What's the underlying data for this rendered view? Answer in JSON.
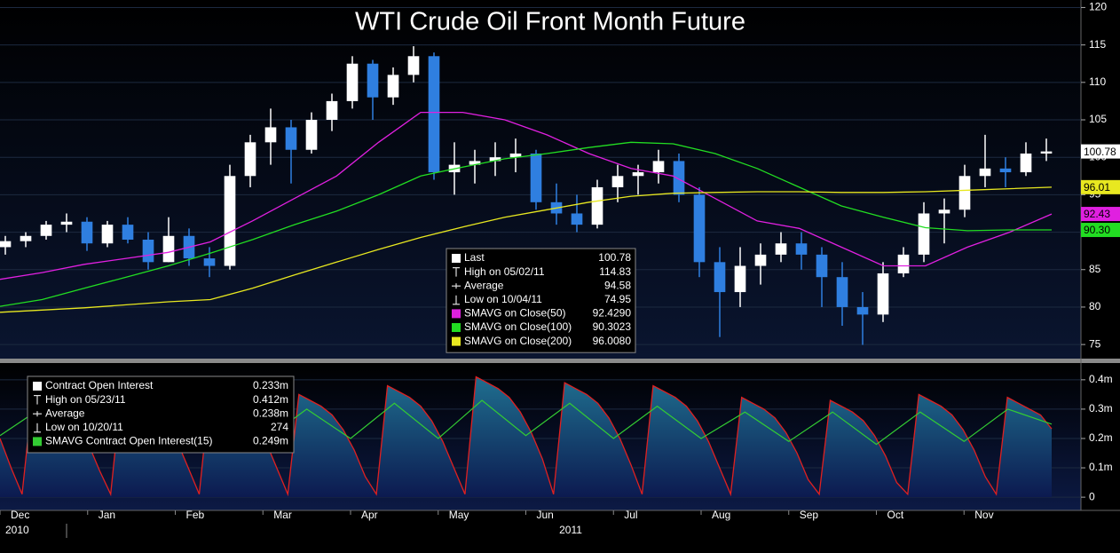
{
  "chart_data": [
    {
      "type": "candlestick",
      "title": "WTI Crude Oil Front Month Future",
      "ylim": [
        73,
        121
      ],
      "yticks": [
        75,
        80,
        85,
        90,
        95,
        100,
        105,
        110,
        115,
        120
      ],
      "grid": true,
      "up_color": "#ffffff",
      "down_color": "#2f7fe0",
      "ohlc": [
        [
          88,
          89.5,
          87,
          88.8
        ],
        [
          88.8,
          90,
          88,
          89.5
        ],
        [
          89.5,
          91.5,
          89,
          91
        ],
        [
          91,
          92.5,
          90,
          91.4
        ],
        [
          91.4,
          92,
          87.5,
          88.5
        ],
        [
          88.5,
          91.5,
          88,
          91
        ],
        [
          91,
          92,
          88.5,
          89
        ],
        [
          89,
          90,
          85,
          86
        ],
        [
          86,
          92,
          86,
          89.5
        ],
        [
          89.5,
          90.5,
          85.5,
          86.5
        ],
        [
          86.5,
          88,
          84,
          85.5
        ],
        [
          85.5,
          99,
          85,
          97.5
        ],
        [
          97.5,
          103,
          96,
          102
        ],
        [
          102,
          106.5,
          99,
          104
        ],
        [
          104,
          105,
          96.5,
          101
        ],
        [
          101,
          106,
          100.5,
          105
        ],
        [
          105,
          108.5,
          103.5,
          107.5
        ],
        [
          107.5,
          113.5,
          106.5,
          112.5
        ],
        [
          112.5,
          113,
          105,
          108
        ],
        [
          108,
          112,
          107,
          111
        ],
        [
          111,
          114.83,
          110,
          113.5
        ],
        [
          113.5,
          114,
          97,
          98
        ],
        [
          98,
          102,
          95,
          99
        ],
        [
          99,
          101,
          96.5,
          99.5
        ],
        [
          99.5,
          102,
          97.5,
          100
        ],
        [
          100,
          102.5,
          98,
          100.5
        ],
        [
          100.5,
          101,
          93,
          94
        ],
        [
          94,
          96.5,
          91,
          92.5
        ],
        [
          92.5,
          95,
          90,
          91
        ],
        [
          91,
          97,
          90.5,
          96
        ],
        [
          96,
          99,
          94,
          97.5
        ],
        [
          97.5,
          99,
          95,
          98
        ],
        [
          98,
          101,
          96.5,
          99.5
        ],
        [
          99.5,
          100.5,
          94,
          95
        ],
        [
          95,
          96,
          84,
          86
        ],
        [
          86,
          88,
          76,
          82
        ],
        [
          82,
          88,
          80,
          85.5
        ],
        [
          85.5,
          88.5,
          83,
          87
        ],
        [
          87,
          90,
          86,
          88.5
        ],
        [
          88.5,
          90,
          85,
          87
        ],
        [
          87,
          88,
          80,
          84
        ],
        [
          84,
          86,
          77.5,
          80
        ],
        [
          80,
          82,
          74.95,
          79
        ],
        [
          79,
          86,
          78,
          84.5
        ],
        [
          84.5,
          88,
          84,
          87
        ],
        [
          87,
          94,
          86,
          92.5
        ],
        [
          92.5,
          94.5,
          88.5,
          93
        ],
        [
          93,
          99,
          92,
          97.5
        ],
        [
          97.5,
          103,
          96,
          98.5
        ],
        [
          98.5,
          100,
          96,
          98
        ],
        [
          98,
          102,
          97.5,
          100.5
        ],
        [
          100.5,
          102.5,
          99.5,
          100.78
        ]
      ],
      "stats": [
        {
          "label": "Last",
          "value": 100.78
        },
        {
          "label": "High on 05/02/11",
          "value": 114.83
        },
        {
          "label": "Average",
          "value": 94.58
        },
        {
          "label": "Low on 10/04/11",
          "value": 74.95
        }
      ],
      "series": [
        {
          "name": "SMAVG on Close(50)",
          "color": "#e020e0",
          "last": 92.429,
          "last_label": "92.4290",
          "tag": 92.43,
          "values": [
            83.7,
            84.6,
            85.7,
            86.5,
            87.3,
            88.7,
            91.5,
            94.5,
            97.5,
            102,
            106,
            106,
            105,
            103,
            100.5,
            98.5,
            97.5,
            94.5,
            91.5,
            90.5,
            88,
            85.5,
            85.5,
            88,
            90,
            92.43
          ]
        },
        {
          "name": "SMAVG on Close(100)",
          "color": "#22dd22",
          "last": 90.3023,
          "tag": 90.3,
          "tag_label": "90.30",
          "values": [
            80.1,
            81,
            82.5,
            84,
            85.5,
            87.2,
            89,
            91,
            92.8,
            95,
            97.5,
            98.7,
            99.8,
            100.5,
            101.3,
            102,
            101.8,
            100.5,
            98.5,
            96,
            93.5,
            92,
            90.6,
            90.2,
            90.3,
            90.3
          ]
        },
        {
          "name": "SMAVG on Close(200)",
          "color": "#e8e820",
          "last": 96.008,
          "last_label": "96.0080",
          "tag": 96.01,
          "values": [
            79.3,
            79.6,
            79.9,
            80.3,
            80.7,
            81,
            82.5,
            84.3,
            86,
            87.7,
            89.3,
            90.7,
            92,
            93,
            94,
            94.8,
            95.2,
            95.3,
            95.4,
            95.4,
            95.3,
            95.3,
            95.4,
            95.6,
            95.8,
            96.01
          ]
        }
      ]
    },
    {
      "type": "area",
      "ylim": [
        -0.045,
        0.46
      ],
      "yticks": [
        0,
        {
          "value": 0.1,
          "label": "0.1m"
        },
        {
          "value": 0.2,
          "label": "0.2m"
        },
        {
          "value": 0.3,
          "label": "0.3m"
        },
        {
          "value": 0.4,
          "label": "0.4m"
        }
      ],
      "stats": [
        {
          "label": "Contract Open Interest",
          "value": 0.233,
          "value_label": "0.233m"
        },
        {
          "label": "High on 05/23/11",
          "value": 0.412,
          "value_label": "0.412m"
        },
        {
          "label": "Average",
          "value": 0.238,
          "value_label": "0.238m"
        },
        {
          "label": "Low on 10/20/11",
          "value": 274
        }
      ],
      "series": [
        {
          "color": "#e02020",
          "values": [
            0.2,
            0.1,
            0.01,
            0.37,
            0.35,
            0.33,
            0.3,
            0.25,
            0.18,
            0.09,
            0.01,
            0.38,
            0.36,
            0.34,
            0.31,
            0.26,
            0.19,
            0.1,
            0.01,
            0.38,
            0.36,
            0.34,
            0.31,
            0.26,
            0.19,
            0.1,
            0.01,
            0.35,
            0.33,
            0.31,
            0.28,
            0.23,
            0.16,
            0.07,
            0.01,
            0.38,
            0.36,
            0.34,
            0.31,
            0.26,
            0.19,
            0.1,
            0.01,
            0.41,
            0.39,
            0.37,
            0.34,
            0.29,
            0.22,
            0.13,
            0.01,
            0.39,
            0.37,
            0.35,
            0.32,
            0.27,
            0.2,
            0.11,
            0.01,
            0.38,
            0.36,
            0.34,
            0.31,
            0.26,
            0.19,
            0.1,
            0.01,
            0.34,
            0.32,
            0.3,
            0.27,
            0.22,
            0.15,
            0.06,
            0.01,
            0.33,
            0.31,
            0.29,
            0.26,
            0.21,
            0.14,
            0.05,
            0.01,
            0.35,
            0.33,
            0.31,
            0.28,
            0.23,
            0.16,
            0.07,
            0.01,
            0.34,
            0.32,
            0.3,
            0.28,
            0.233
          ]
        },
        {
          "name": "SMAVG Contract Open Interest(15)",
          "color": "#33cc33",
          "last": 0.249,
          "last_label": "0.249m",
          "values": [
            0.21,
            0.31,
            0.19,
            0.32,
            0.2,
            0.31,
            0.19,
            0.3,
            0.2,
            0.32,
            0.2,
            0.33,
            0.21,
            0.32,
            0.2,
            0.31,
            0.2,
            0.29,
            0.19,
            0.29,
            0.18,
            0.29,
            0.19,
            0.3,
            0.249
          ]
        }
      ]
    }
  ],
  "x_axis": {
    "months": [
      "Dec",
      "Jan",
      "Feb",
      "Mar",
      "Apr",
      "May",
      "Jun",
      "Jul",
      "Aug",
      "Sep",
      "Oct",
      "Nov"
    ],
    "years": [
      "2010",
      "2011"
    ]
  }
}
